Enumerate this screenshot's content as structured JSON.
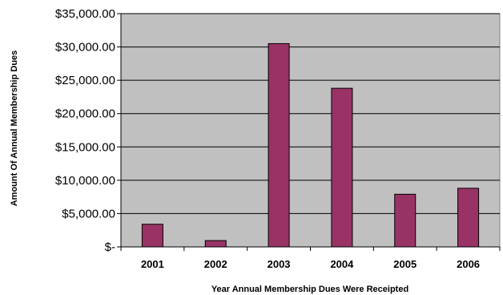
{
  "chart_data": {
    "type": "bar",
    "title": "",
    "xlabel": "Year Annual Membership Dues Were Receipted",
    "ylabel": "Amount Of Annual Membership Dues",
    "categories": [
      "2001",
      "2002",
      "2003",
      "2004",
      "2005",
      "2006"
    ],
    "values": [
      3400,
      950,
      30500,
      23800,
      7900,
      8800
    ],
    "ylim": [
      0,
      35000
    ],
    "yticks": [
      0,
      5000,
      10000,
      15000,
      20000,
      25000,
      30000,
      35000
    ],
    "ytick_labels": [
      "$-",
      "$5,000.00",
      "$10,000.00",
      "$15,000.00",
      "$20,000.00",
      "$25,000.00",
      "$30,000.00",
      "$35,000.00"
    ],
    "grid": true,
    "legend": "none",
    "colors": {
      "plot_background": "#c0c0c0",
      "bar_fill": "#993366",
      "bar_stroke": "#000000",
      "gridline": "#000000"
    }
  }
}
